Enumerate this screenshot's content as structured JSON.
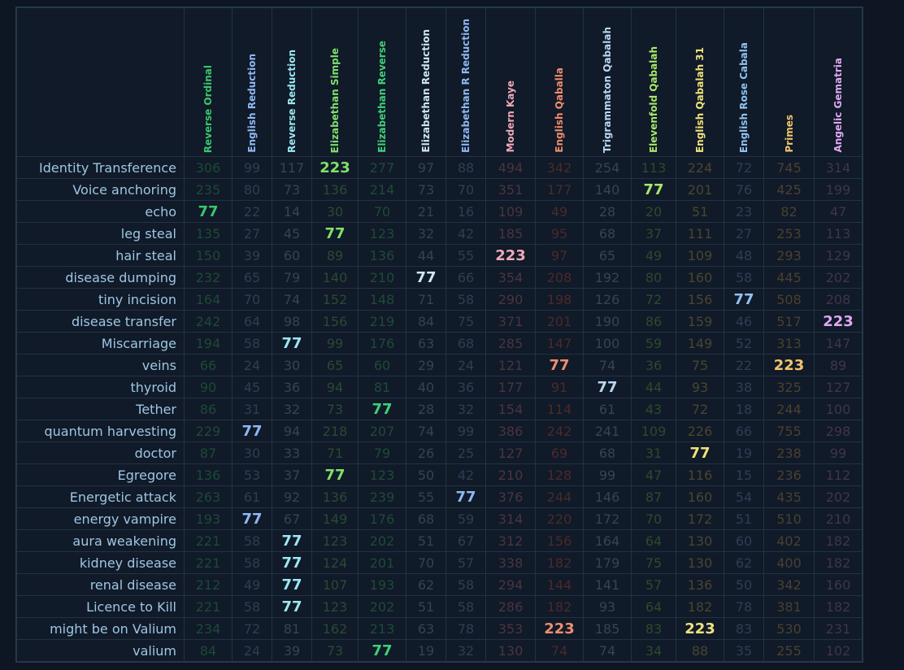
{
  "table": {
    "columns": [
      {
        "name": "Reverse Ordinal",
        "color": "#39c66b",
        "dim": "#1d4a37",
        "width": 58
      },
      {
        "name": "English Reduction",
        "color": "#8fb8f2",
        "dim": "#2e3e55",
        "width": 48
      },
      {
        "name": "Reverse Reduction",
        "color": "#9be7f2",
        "dim": "#34464f",
        "width": 48
      },
      {
        "name": "Elizabethan Simple",
        "color": "#7fe06d",
        "dim": "#2a4a34",
        "width": 56
      },
      {
        "name": "Elizabethan Reverse",
        "color": "#3fd079",
        "dim": "#1f4a38",
        "width": 58
      },
      {
        "name": "Elizabethan Reduction",
        "color": "#cfe6f5",
        "dim": "#34434f",
        "width": 48
      },
      {
        "name": "Elizabethan R Reduction",
        "color": "#8fb8f2",
        "dim": "#2e3e55",
        "width": 48
      },
      {
        "name": "Modern Kaye",
        "color": "#f0a8b8",
        "dim": "#4a3440",
        "width": 60
      },
      {
        "name": "English Qaballa",
        "color": "#f08c6c",
        "dim": "#4a2a2a",
        "width": 58
      },
      {
        "name": "Trigrammaton Qabalah",
        "color": "#b9d8f2",
        "dim": "#354456",
        "width": 58
      },
      {
        "name": "Elevenfold Qabalah",
        "color": "#a8e86b",
        "dim": "#2d4a2e",
        "width": 54
      },
      {
        "name": "English Qabalah 31",
        "color": "#efe27a",
        "dim": "#4a4530",
        "width": 58
      },
      {
        "name": "English Rose Cabala",
        "color": "#8fc2f2",
        "dim": "#2e3e55",
        "width": 48
      },
      {
        "name": "Primes",
        "color": "#f2c46b",
        "dim": "#4a4030",
        "width": 61
      },
      {
        "name": "Angelic Gematria",
        "color": "#e0a8f2",
        "dim": "#43334f",
        "width": 58
      }
    ],
    "rows": [
      {
        "label": "Identity Transference",
        "values": [
          "306",
          "99",
          "117",
          "223",
          "277",
          "97",
          "88",
          "494",
          "342",
          "254",
          "113",
          "224",
          "72",
          "745",
          "314"
        ]
      },
      {
        "label": "Voice anchoring",
        "values": [
          "235",
          "80",
          "73",
          "136",
          "214",
          "73",
          "70",
          "351",
          "177",
          "140",
          "77",
          "201",
          "76",
          "425",
          "199"
        ]
      },
      {
        "label": "echo",
        "values": [
          "77",
          "22",
          "14",
          "30",
          "70",
          "21",
          "16",
          "109",
          "49",
          "28",
          "20",
          "51",
          "23",
          "82",
          "47"
        ]
      },
      {
        "label": "leg steal",
        "values": [
          "135",
          "27",
          "45",
          "77",
          "123",
          "32",
          "42",
          "185",
          "95",
          "68",
          "37",
          "111",
          "27",
          "253",
          "113"
        ]
      },
      {
        "label": "hair steal",
        "values": [
          "150",
          "39",
          "60",
          "89",
          "136",
          "44",
          "55",
          "223",
          "97",
          "65",
          "49",
          "109",
          "48",
          "293",
          "129"
        ]
      },
      {
        "label": "disease dumping",
        "values": [
          "232",
          "65",
          "79",
          "140",
          "210",
          "77",
          "66",
          "354",
          "208",
          "192",
          "80",
          "160",
          "58",
          "445",
          "202"
        ]
      },
      {
        "label": "tiny incision",
        "values": [
          "164",
          "70",
          "74",
          "152",
          "148",
          "71",
          "58",
          "290",
          "198",
          "126",
          "72",
          "156",
          "77",
          "508",
          "208"
        ]
      },
      {
        "label": "disease transfer",
        "values": [
          "242",
          "64",
          "98",
          "156",
          "219",
          "84",
          "75",
          "371",
          "201",
          "190",
          "86",
          "159",
          "46",
          "517",
          "223"
        ]
      },
      {
        "label": "Miscarriage",
        "values": [
          "194",
          "58",
          "77",
          "99",
          "176",
          "63",
          "68",
          "285",
          "147",
          "100",
          "59",
          "149",
          "52",
          "313",
          "147"
        ]
      },
      {
        "label": "veins",
        "values": [
          "66",
          "24",
          "30",
          "65",
          "60",
          "29",
          "24",
          "121",
          "77",
          "74",
          "36",
          "75",
          "22",
          "223",
          "89"
        ]
      },
      {
        "label": "thyroid",
        "values": [
          "90",
          "45",
          "36",
          "94",
          "81",
          "40",
          "36",
          "177",
          "91",
          "77",
          "44",
          "93",
          "38",
          "325",
          "127"
        ]
      },
      {
        "label": "Tether",
        "values": [
          "86",
          "31",
          "32",
          "73",
          "77",
          "28",
          "32",
          "154",
          "114",
          "61",
          "43",
          "72",
          "18",
          "244",
          "100"
        ]
      },
      {
        "label": "quantum harvesting",
        "values": [
          "229",
          "77",
          "94",
          "218",
          "207",
          "74",
          "99",
          "386",
          "242",
          "241",
          "109",
          "226",
          "66",
          "755",
          "298"
        ]
      },
      {
        "label": "doctor",
        "values": [
          "87",
          "30",
          "33",
          "71",
          "79",
          "26",
          "25",
          "127",
          "69",
          "68",
          "31",
          "77",
          "19",
          "238",
          "99"
        ]
      },
      {
        "label": "Egregore",
        "values": [
          "136",
          "53",
          "37",
          "77",
          "123",
          "50",
          "42",
          "210",
          "128",
          "99",
          "47",
          "116",
          "15",
          "236",
          "112"
        ]
      },
      {
        "label": "Energetic attack",
        "values": [
          "263",
          "61",
          "92",
          "136",
          "239",
          "55",
          "77",
          "376",
          "244",
          "146",
          "87",
          "160",
          "54",
          "435",
          "202"
        ]
      },
      {
        "label": "energy vampire",
        "values": [
          "193",
          "77",
          "67",
          "149",
          "176",
          "68",
          "59",
          "314",
          "220",
          "172",
          "70",
          "172",
          "51",
          "510",
          "210"
        ]
      },
      {
        "label": "aura weakening",
        "values": [
          "221",
          "58",
          "77",
          "123",
          "202",
          "51",
          "67",
          "312",
          "156",
          "164",
          "64",
          "130",
          "60",
          "402",
          "182"
        ]
      },
      {
        "label": "kidney disease",
        "values": [
          "221",
          "58",
          "77",
          "124",
          "201",
          "70",
          "57",
          "338",
          "182",
          "179",
          "75",
          "130",
          "62",
          "400",
          "182"
        ]
      },
      {
        "label": "renal disease",
        "values": [
          "212",
          "49",
          "77",
          "107",
          "193",
          "62",
          "58",
          "294",
          "144",
          "141",
          "57",
          "136",
          "50",
          "342",
          "160"
        ]
      },
      {
        "label": "Licence to Kill",
        "values": [
          "221",
          "58",
          "77",
          "123",
          "202",
          "51",
          "58",
          "286",
          "182",
          "93",
          "64",
          "182",
          "78",
          "381",
          "182"
        ]
      },
      {
        "label": "might be on Valium",
        "values": [
          "234",
          "72",
          "81",
          "162",
          "213",
          "63",
          "78",
          "353",
          "223",
          "185",
          "83",
          "223",
          "83",
          "530",
          "231"
        ]
      },
      {
        "label": "valium",
        "values": [
          "84",
          "24",
          "39",
          "73",
          "77",
          "19",
          "32",
          "130",
          "74",
          "74",
          "34",
          "88",
          "35",
          "255",
          "102"
        ]
      }
    ],
    "highlight_values": [
      "77",
      "223"
    ]
  }
}
